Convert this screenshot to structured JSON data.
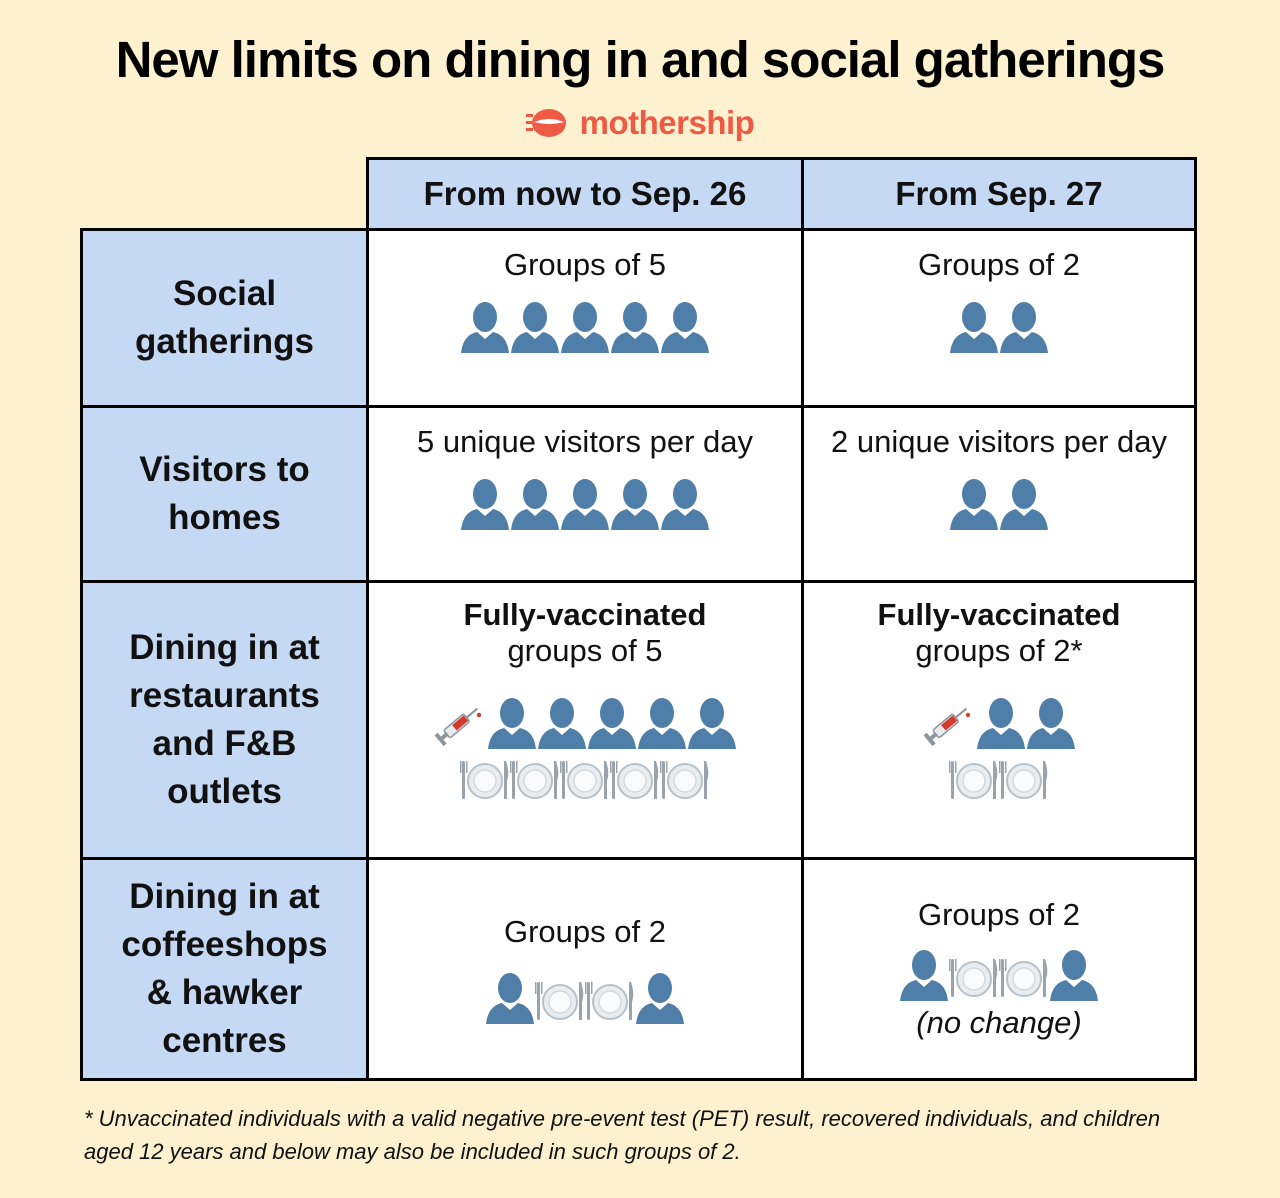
{
  "title": "New limits on dining in and social gatherings",
  "brand": {
    "name": "mothership",
    "color": "#ef5a45"
  },
  "columns": [
    "From now to Sep. 26",
    "From Sep. 27"
  ],
  "rows": [
    {
      "label": "Social\ngatherings",
      "now": {
        "text": "Groups of 5",
        "people": 5
      },
      "later": {
        "text": "Groups of 2",
        "people": 2
      }
    },
    {
      "label": "Visitors to\nhomes",
      "now": {
        "text": "5 unique visitors per day",
        "people": 5
      },
      "later": {
        "text": "2 unique visitors per day",
        "people": 2
      }
    },
    {
      "label": "Dining in at\nrestaurants\nand F&B\noutlets",
      "now": {
        "bold": "Fully-vaccinated",
        "text": "groups of 5",
        "people": 5,
        "plates": 5,
        "icons": [
          "syringe-icon",
          "person-icon",
          "plate-cutlery-icon"
        ]
      },
      "later": {
        "bold": "Fully-vaccinated",
        "text": "groups of 2*",
        "people": 2,
        "plates": 2,
        "icons": [
          "syringe-icon",
          "person-icon",
          "plate-cutlery-icon"
        ]
      }
    },
    {
      "label": "Dining in at\ncoffeeshops\n& hawker\ncentres",
      "now": {
        "text": "Groups of 2",
        "people": 2,
        "plates": 2
      },
      "later": {
        "text": "Groups of 2",
        "note": "(no change)",
        "people": 2,
        "plates": 2
      }
    }
  ],
  "footnote": "* Unvaccinated individuals with a valid negative pre-event test (PET) result, recovered individuals, and children aged 12 years and below may also be included in such groups of 2.",
  "colors": {
    "background": "#fdf1cf",
    "header_fill": "#c6d9f4",
    "icon_blue": "#4f7ea8"
  }
}
